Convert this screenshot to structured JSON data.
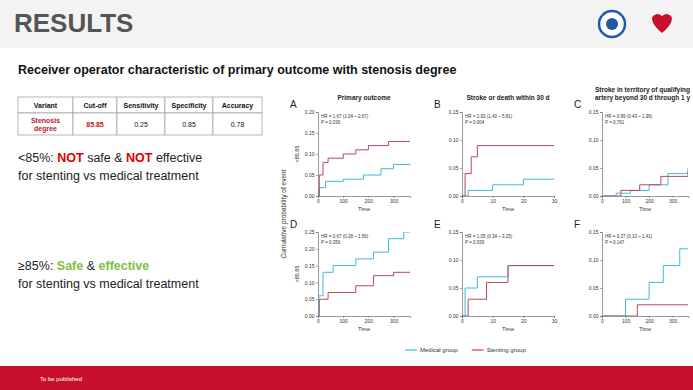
{
  "slide": {
    "title": "RESULTS",
    "subtitle": "Receiver operator characteristic of primary outcome with stenosis degree",
    "table": {
      "header": [
        "Variant",
        "Cut-off",
        "Sensitivity",
        "Specificity",
        "Accuracy"
      ],
      "rows": [
        [
          "Stenosis degree",
          "85.85",
          "0.25",
          "0.85",
          "0.78"
        ]
      ]
    },
    "findings": [
      [
        [
          {
            "text": "<85%: "
          },
          {
            "text": "NOT",
            "color": "#e00000"
          },
          {
            "text": " safe & "
          },
          {
            "text": "NOT",
            "color": "#e00000"
          },
          {
            "text": " effective"
          }
        ],
        [
          {
            "text": "for stenting vs medical treatment"
          }
        ]
      ],
      [
        [
          {
            "text": "≥85%: "
          },
          {
            "text": "Safe",
            "color": "#7cc242"
          },
          {
            "text": " & "
          },
          {
            "text": "effective",
            "color": "#7cc242"
          }
        ],
        [
          {
            "text": "for stenting vs medical treatment"
          }
        ]
      ]
    ],
    "y_label": "Cumulative probability of event",
    "row_labels": [
      "<85.85",
      ">85.85"
    ],
    "footer": "To be published"
  },
  "chart_data": [
    {
      "type": "line",
      "panel_label": "A",
      "title": "Primary outcome",
      "x_label": "Time",
      "annotations": [
        "HR = 1.67 (1.04 ~ 2.67)",
        "P = 0.036"
      ],
      "xlim": [
        0,
        365
      ],
      "xticks": [
        0,
        100,
        200,
        300
      ],
      "ylim": [
        0,
        0.2
      ],
      "yticks": [
        {
          "value": 0,
          "label": "0.00"
        },
        {
          "value": 0.05,
          "label": "0.05"
        },
        {
          "value": 0.1,
          "label": "0.10"
        },
        {
          "value": 0.15,
          "label": "0.15"
        },
        {
          "value": 0.2,
          "label": "0.20"
        }
      ],
      "line_style": "step",
      "series": [
        {
          "name": "Medical group",
          "color": "#3fb8e6",
          "x": [
            0,
            5,
            30,
            100,
            180,
            250,
            300,
            365
          ],
          "values": [
            0,
            0.02,
            0.035,
            0.04,
            0.05,
            0.065,
            0.075,
            0.08
          ]
        },
        {
          "name": "Stenting group",
          "color": "#b5485c",
          "x": [
            0,
            5,
            20,
            40,
            100,
            150,
            200,
            280,
            365
          ],
          "values": [
            0,
            0.05,
            0.08,
            0.09,
            0.1,
            0.11,
            0.12,
            0.13,
            0.13
          ]
        }
      ]
    },
    {
      "type": "line",
      "panel_label": "B",
      "title": "Stroke or death within 30 d",
      "x_label": "Time",
      "annotations": [
        "HR = 2.93 (1.40 ~ 5.81)",
        "P = 0.004"
      ],
      "xlim": [
        0,
        30
      ],
      "xticks": [
        0,
        10,
        20,
        30
      ],
      "ylim": [
        0,
        0.15
      ],
      "yticks": [
        {
          "value": 0,
          "label": "0.00"
        },
        {
          "value": 0.05,
          "label": "0.05"
        },
        {
          "value": 0.1,
          "label": "0.10"
        },
        {
          "value": 0.15,
          "label": "0.15"
        }
      ],
      "line_style": "step",
      "series": [
        {
          "name": "Medical group",
          "color": "#3fb8e6",
          "x": [
            0,
            2,
            10,
            20,
            30
          ],
          "values": [
            0,
            0.01,
            0.02,
            0.03,
            0.03
          ]
        },
        {
          "name": "Stenting group",
          "color": "#b5485c",
          "x": [
            0,
            1,
            3,
            5,
            30
          ],
          "values": [
            0,
            0.04,
            0.07,
            0.09,
            0.09
          ]
        }
      ]
    },
    {
      "type": "line",
      "panel_label": "C",
      "title": "Stroke in territory of qualifying artery beyond 30 d through 1 y",
      "x_label": "Time",
      "annotations": [
        "HR = 0.99 (0.43 ~ 1.96)",
        "P = 0.761"
      ],
      "xlim": [
        0,
        365
      ],
      "xticks": [
        0,
        100,
        200,
        300
      ],
      "ylim": [
        0,
        0.15
      ],
      "yticks": [
        {
          "value": 0,
          "label": "0.00"
        },
        {
          "value": 0.05,
          "label": "0.05"
        },
        {
          "value": 0.1,
          "label": "0.10"
        },
        {
          "value": 0.15,
          "label": "0.15"
        }
      ],
      "line_style": "step",
      "series": [
        {
          "name": "Medical group",
          "color": "#3fb8e6",
          "x": [
            0,
            60,
            120,
            200,
            280,
            365
          ],
          "values": [
            0,
            0.005,
            0.01,
            0.02,
            0.04,
            0.05
          ]
        },
        {
          "name": "Stenting group",
          "color": "#b5485c",
          "x": [
            0,
            80,
            160,
            250,
            365
          ],
          "values": [
            0,
            0.01,
            0.02,
            0.035,
            0.045
          ]
        }
      ]
    },
    {
      "type": "line",
      "panel_label": "D",
      "x_label": "Time",
      "annotations": [
        "HR = 0.67 (0.28 ~ 1.56)",
        "P = 0.356"
      ],
      "xlim": [
        0,
        365
      ],
      "xticks": [
        0,
        100,
        200,
        300
      ],
      "ylim": [
        0,
        0.25
      ],
      "yticks": [
        {
          "value": 0,
          "label": "0.00"
        },
        {
          "value": 0.05,
          "label": "0.05"
        },
        {
          "value": 0.1,
          "label": "0.10"
        },
        {
          "value": 0.15,
          "label": "0.15"
        },
        {
          "value": 0.2,
          "label": "0.20"
        },
        {
          "value": 0.25,
          "label": "0.25"
        }
      ],
      "line_style": "step",
      "series": [
        {
          "name": "Medical group",
          "color": "#3fb8e6",
          "x": [
            0,
            3,
            20,
            60,
            150,
            220,
            280,
            340,
            365
          ],
          "values": [
            0,
            0.06,
            0.13,
            0.15,
            0.17,
            0.19,
            0.23,
            0.25,
            0.25
          ]
        },
        {
          "name": "Stenting group",
          "color": "#b5485c",
          "x": [
            0,
            5,
            40,
            150,
            220,
            300,
            365
          ],
          "values": [
            0,
            0.05,
            0.07,
            0.09,
            0.12,
            0.13,
            0.13
          ]
        }
      ]
    },
    {
      "type": "line",
      "panel_label": "E",
      "x_label": "Time",
      "annotations": [
        "HR = 1.05 (0.34 ~ 3.25)",
        "P = 0.939"
      ],
      "xlim": [
        0,
        30
      ],
      "xticks": [
        0,
        10,
        20,
        30
      ],
      "ylim": [
        0,
        0.15
      ],
      "yticks": [
        {
          "value": 0,
          "label": "0.00"
        },
        {
          "value": 0.05,
          "label": "0.05"
        },
        {
          "value": 0.1,
          "label": "0.10"
        },
        {
          "value": 0.15,
          "label": "0.15"
        }
      ],
      "line_style": "step",
      "legend": "bottom",
      "series": [
        {
          "name": "Medical group",
          "color": "#3fb8e6",
          "x": [
            0,
            1,
            5,
            15,
            30
          ],
          "values": [
            0,
            0.05,
            0.07,
            0.09,
            0.09
          ]
        },
        {
          "name": "Stenting group",
          "color": "#b5485c",
          "x": [
            0,
            2,
            8,
            15,
            30
          ],
          "values": [
            0,
            0.03,
            0.06,
            0.09,
            0.09
          ]
        }
      ]
    },
    {
      "type": "line",
      "panel_label": "F",
      "x_label": "Time",
      "annotations": [
        "HR = 0.37 (0.10 ~ 1.41)",
        "P = 0.147"
      ],
      "xlim": [
        0,
        365
      ],
      "xticks": [
        0,
        100,
        200,
        300
      ],
      "ylim": [
        0,
        0.15
      ],
      "yticks": [
        {
          "value": 0,
          "label": "0.00"
        },
        {
          "value": 0.05,
          "label": "0.05"
        },
        {
          "value": 0.1,
          "label": "0.10"
        },
        {
          "value": 0.15,
          "label": "0.15"
        }
      ],
      "line_style": "step",
      "series": [
        {
          "name": "Medical group",
          "color": "#3fb8e6",
          "x": [
            0,
            100,
            200,
            260,
            330,
            365
          ],
          "values": [
            0,
            0.03,
            0.06,
            0.09,
            0.12,
            0.12
          ]
        },
        {
          "name": "Stenting group",
          "color": "#b5485c",
          "x": [
            0,
            150,
            365
          ],
          "values": [
            0,
            0.02,
            0.02
          ]
        }
      ]
    }
  ]
}
